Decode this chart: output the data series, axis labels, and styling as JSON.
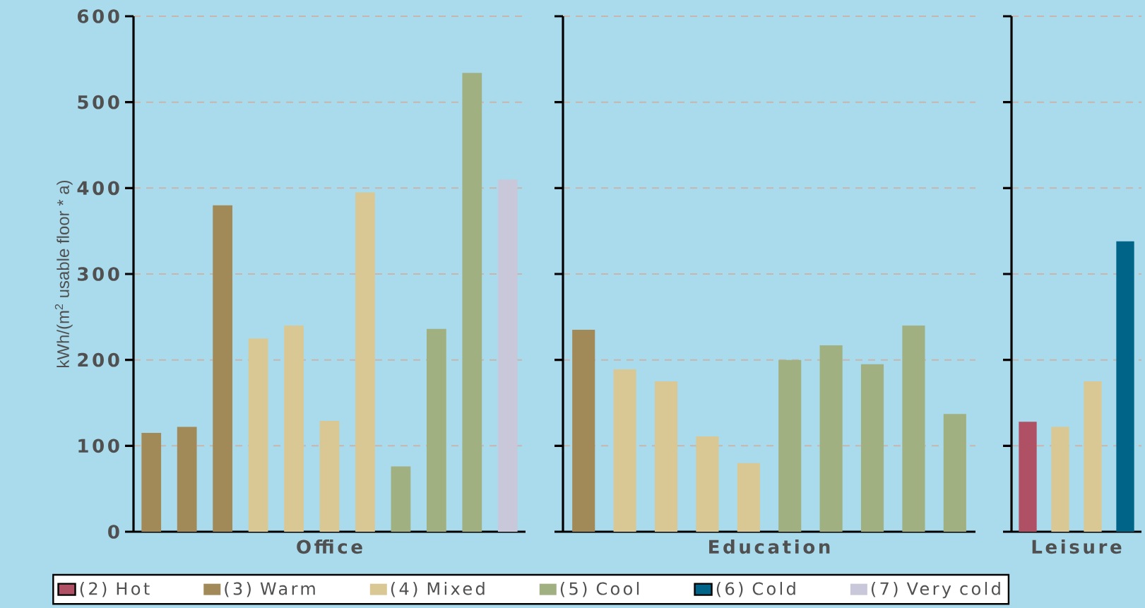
{
  "chart_data": [
    {
      "type": "bar",
      "xlabel": "Office",
      "ylabel": "kWh/(m$^{2}$ usable floor * a)",
      "categories": [
        null,
        null,
        null,
        null,
        null,
        null,
        null,
        null,
        null,
        null,
        null
      ],
      "ylim": [
        0,
        600
      ],
      "yticks": [
        0,
        100,
        200,
        300,
        400,
        500,
        600
      ],
      "grid": "y",
      "legend": "bottom",
      "tick_labels": "y",
      "series": [
        {
          "name": "(2) Hot",
          "color": "#b05064",
          "values": [
            null,
            null,
            null,
            null,
            null,
            null,
            null,
            null,
            null,
            null,
            null
          ]
        },
        {
          "name": "(3) Warm",
          "color": "#a28a58",
          "values": [
            115,
            122,
            380,
            null,
            null,
            null,
            null,
            null,
            null,
            null,
            null
          ]
        },
        {
          "name": "(4) Mixed",
          "color": "#d9c894",
          "values": [
            null,
            null,
            null,
            225,
            240,
            129,
            395,
            null,
            null,
            null,
            null
          ]
        },
        {
          "name": "(5) Cool",
          "color": "#a1b080",
          "values": [
            null,
            null,
            null,
            null,
            null,
            null,
            null,
            76,
            236,
            534,
            null
          ]
        },
        {
          "name": "(6) Cold",
          "color": "#006489",
          "values": [
            null,
            null,
            null,
            null,
            null,
            null,
            null,
            null,
            null,
            null,
            null
          ]
        },
        {
          "name": "(7) Very cold",
          "color": "#c8c8da",
          "values": [
            null,
            null,
            null,
            null,
            null,
            null,
            null,
            null,
            null,
            null,
            410
          ]
        }
      ]
    },
    {
      "type": "bar",
      "xlabel": "Education",
      "categories": [
        null,
        null,
        null,
        null,
        null,
        null,
        null,
        null,
        null,
        null
      ],
      "ylim": [
        0,
        600
      ],
      "yticks": [
        0,
        100,
        200,
        300,
        400,
        500,
        600
      ],
      "grid": "y",
      "tick_labels": false,
      "values": [
        235,
        189,
        175,
        111,
        80,
        200,
        217,
        195,
        240,
        137
      ],
      "colors": [
        "#a28a58",
        "#d9c894",
        "#d9c894",
        "#d9c894",
        "#d9c894",
        "#a1b080",
        "#a1b080",
        "#a1b080",
        "#a1b080",
        "#a1b080"
      ]
    },
    {
      "type": "bar",
      "xlabel": "Leisure",
      "categories": [
        null,
        null,
        null,
        null
      ],
      "ylim": [
        0,
        600
      ],
      "yticks": [
        0,
        100,
        200,
        300,
        400,
        500,
        600
      ],
      "grid": "y",
      "tick_labels": false,
      "values": [
        128,
        122,
        175,
        338
      ],
      "colors": [
        "#b05064",
        "#d9c894",
        "#d9c894",
        "#006489"
      ]
    }
  ]
}
